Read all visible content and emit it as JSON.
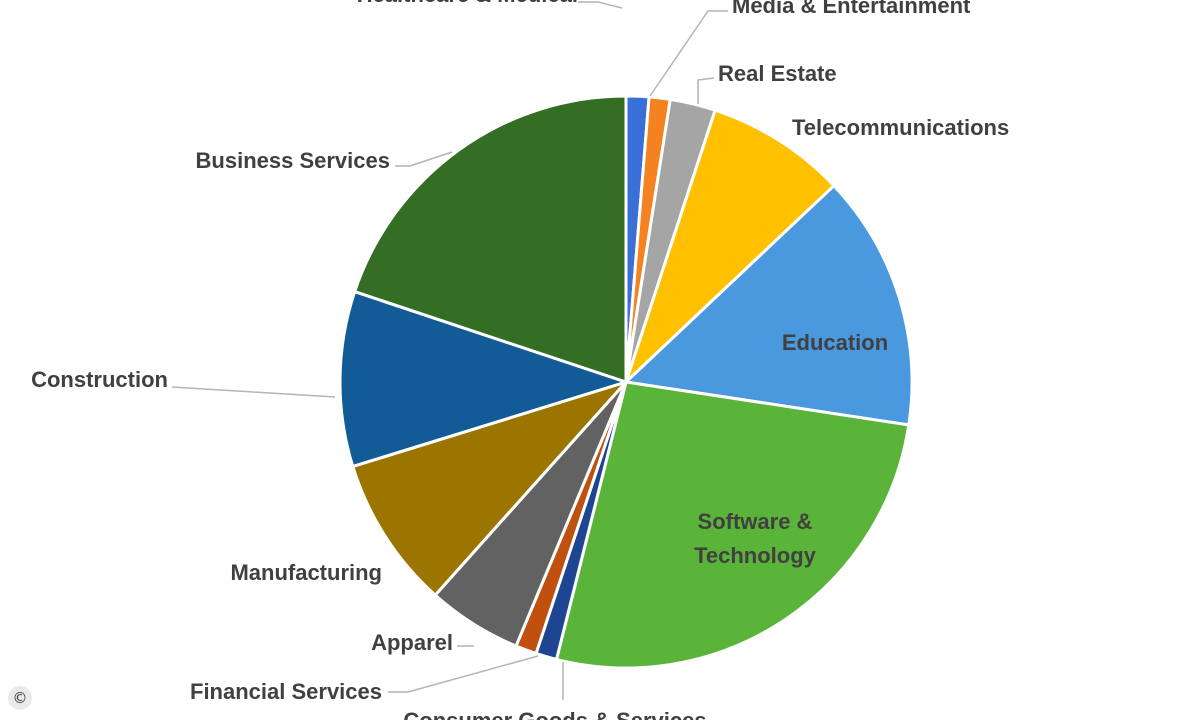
{
  "chart_data": {
    "type": "pie",
    "start_angle_deg": 0,
    "slices": [
      {
        "label": "Healthcare & Medical",
        "value": 1.3,
        "color": "#3A6FD8"
      },
      {
        "label": "Media & Entertainment",
        "value": 1.2,
        "color": "#F58220"
      },
      {
        "label": "Real Estate",
        "value": 2.6,
        "color": "#A5A5A5"
      },
      {
        "label": "Telecommunications",
        "value": 8.0,
        "color": "#FFC000"
      },
      {
        "label": "Education",
        "value": 14.6,
        "color": "#4A98DD"
      },
      {
        "label": "Software & Technology",
        "value": 26.8,
        "color": "#5AB439"
      },
      {
        "label": "Consumer Goods & Services",
        "value": 1.2,
        "color": "#1E4592"
      },
      {
        "label": "Financial Services",
        "value": 1.2,
        "color": "#C0500F"
      },
      {
        "label": "Apparel",
        "value": 5.4,
        "color": "#626262"
      },
      {
        "label": "Manufacturing",
        "value": 8.7,
        "color": "#9C7500"
      },
      {
        "label": "Construction",
        "value": 10.0,
        "color": "#135B96"
      },
      {
        "label": "Business Services",
        "value": 20.1,
        "color": "#346E25"
      }
    ]
  },
  "copyright_symbol": "©"
}
